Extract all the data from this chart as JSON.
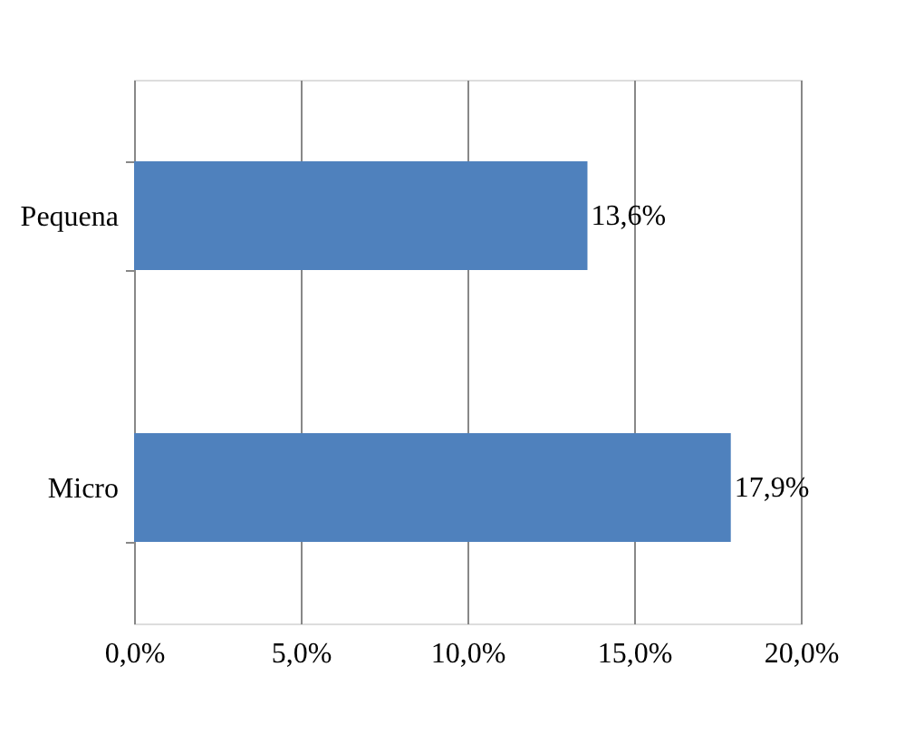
{
  "chart_data": {
    "type": "bar",
    "orientation": "horizontal",
    "categories": [
      "Pequena",
      "Micro"
    ],
    "values": [
      13.6,
      17.9
    ],
    "value_labels": [
      "13,6%",
      "17,9%"
    ],
    "color": "#4f81bd",
    "xlim": [
      0,
      20
    ],
    "xticks": [
      {
        "value": 0,
        "label": "0,0%"
      },
      {
        "value": 5,
        "label": "5,0%"
      },
      {
        "value": 10,
        "label": "10,0%"
      },
      {
        "value": 15,
        "label": "15,0%"
      },
      {
        "value": 20,
        "label": "20,0%"
      }
    ],
    "grid": "x"
  }
}
